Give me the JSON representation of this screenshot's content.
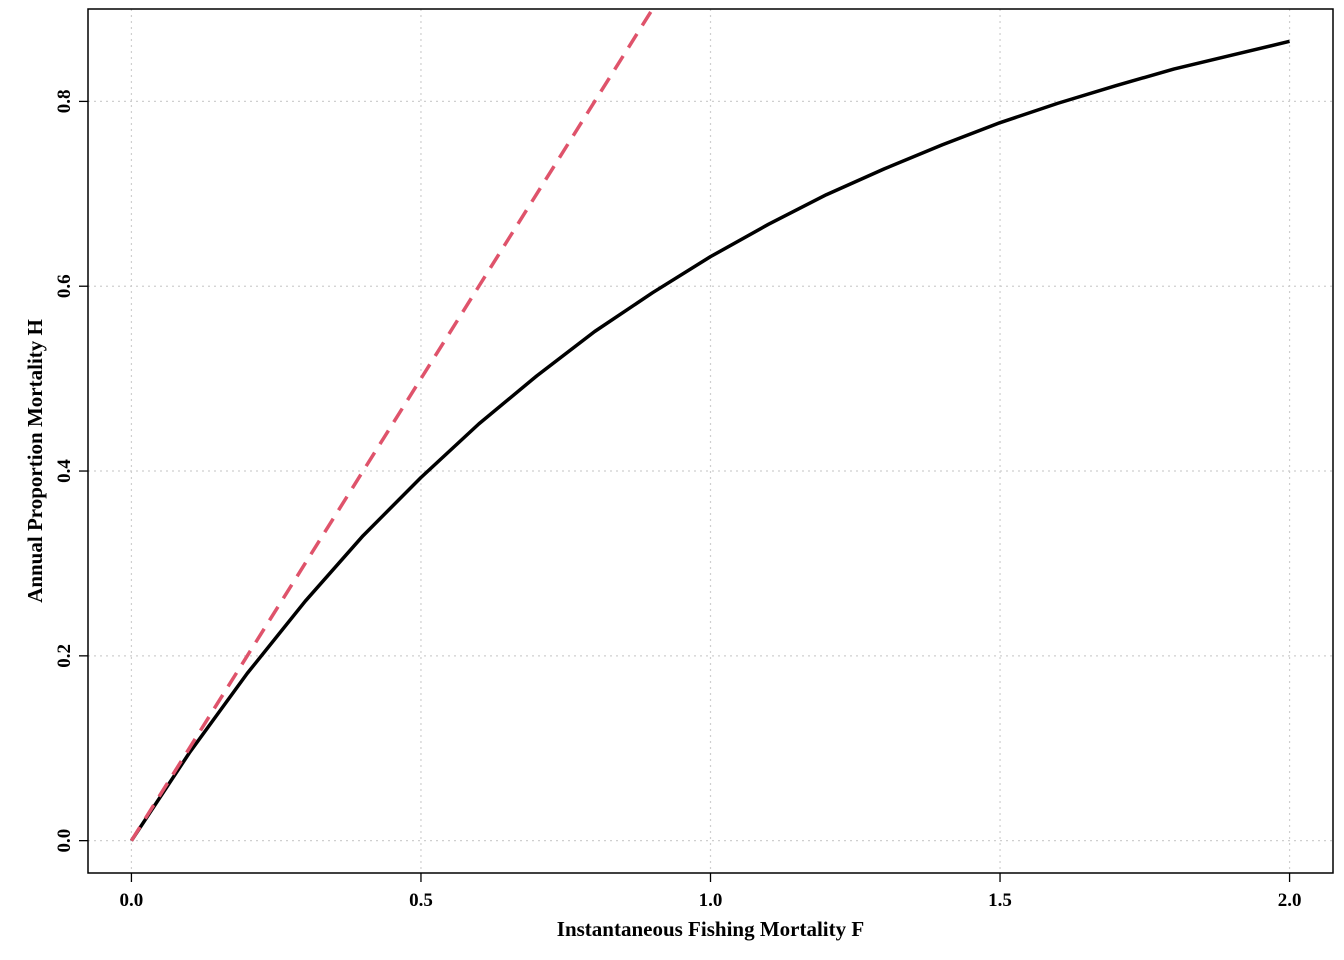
{
  "chart_data": {
    "type": "line",
    "title": "",
    "xlabel": "Instantaneous Fishing Mortality F",
    "ylabel": "Annual Proportion Mortality H",
    "xlim": [
      -0.075,
      2.075
    ],
    "ylim": [
      -0.035,
      0.9
    ],
    "x_ticks": [
      0,
      0.5,
      1,
      1.5,
      2
    ],
    "x_tick_labels": [
      "0.0",
      "0.5",
      "1.0",
      "1.5",
      "2.0"
    ],
    "y_ticks": [
      0,
      0.2,
      0.4,
      0.6,
      0.8
    ],
    "y_tick_labels": [
      "0.0",
      "0.2",
      "0.4",
      "0.6",
      "0.8"
    ],
    "grid": true,
    "grid_style": "dotted",
    "legend": false,
    "series": [
      {
        "style": "solid",
        "color": "#000000",
        "x": [
          0,
          0.1,
          0.2,
          0.3,
          0.4,
          0.5,
          0.6,
          0.7,
          0.8,
          0.9,
          1.0,
          1.1,
          1.2,
          1.3,
          1.4,
          1.5,
          1.6,
          1.7,
          1.8,
          1.9,
          2.0
        ],
        "y": [
          0,
          0.095,
          0.181,
          0.259,
          0.33,
          0.393,
          0.451,
          0.503,
          0.551,
          0.593,
          0.632,
          0.667,
          0.699,
          0.727,
          0.753,
          0.777,
          0.798,
          0.817,
          0.835,
          0.85,
          0.865
        ]
      },
      {
        "style": "dashed",
        "color": "#DF536B",
        "x": [
          0,
          0.9
        ],
        "y": [
          0,
          0.9
        ]
      }
    ]
  }
}
